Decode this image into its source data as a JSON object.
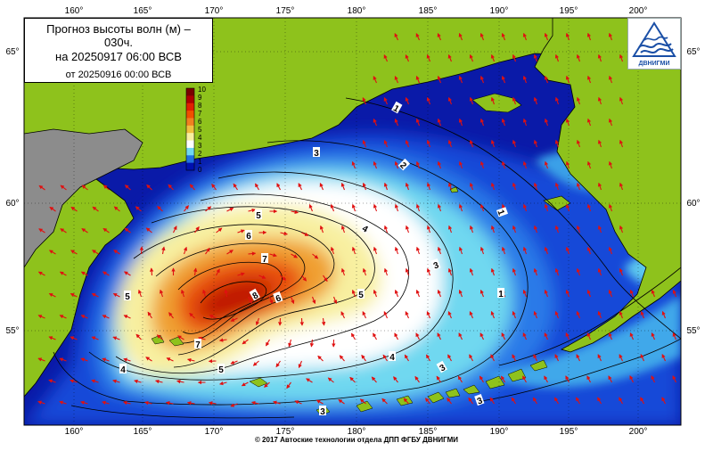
{
  "title": {
    "line1": "Прогноз высоты волн (м) –\n030ч.",
    "line2": "на 20250917 06:00 ВСВ",
    "line3": "от 20250916 00:00 ВСВ"
  },
  "logo": {
    "caption": "ДВНИГМИ"
  },
  "footer": "© 2017 Автоские технологии отдела ДПП ФГБУ ДВНИГМИ",
  "lon_labels": [
    "160°",
    "165°",
    "170°",
    "175°",
    "180°",
    "185°",
    "190°",
    "195°",
    "200°"
  ],
  "lat_labels": [
    "65°",
    "60°",
    "55°"
  ],
  "colorbar": {
    "labels": [
      "10",
      "9",
      "8",
      "7",
      "6",
      "5",
      "4",
      "3",
      "2",
      "1",
      "0"
    ],
    "colors": [
      "#7a0000",
      "#b00000",
      "#e02000",
      "#f05000",
      "#f08020",
      "#f0c040",
      "#f8f0a0",
      "#ffffff",
      "#70d8f0",
      "#2070e0",
      "#0010b0"
    ]
  },
  "contour_labels": [
    "1",
    "1",
    "1",
    "2",
    "3",
    "3",
    "3",
    "3",
    "3",
    "4",
    "4",
    "4",
    "5",
    "5",
    "5",
    "5",
    "6",
    "6",
    "7",
    "7",
    "8"
  ],
  "colors": {
    "land": "#8ec21c",
    "deep_sea": "#0a1aa8",
    "arrow": "#e01010",
    "gray_land": "#8c8c8c"
  },
  "icons": {
    "logo": "wave-emblem-icon"
  }
}
